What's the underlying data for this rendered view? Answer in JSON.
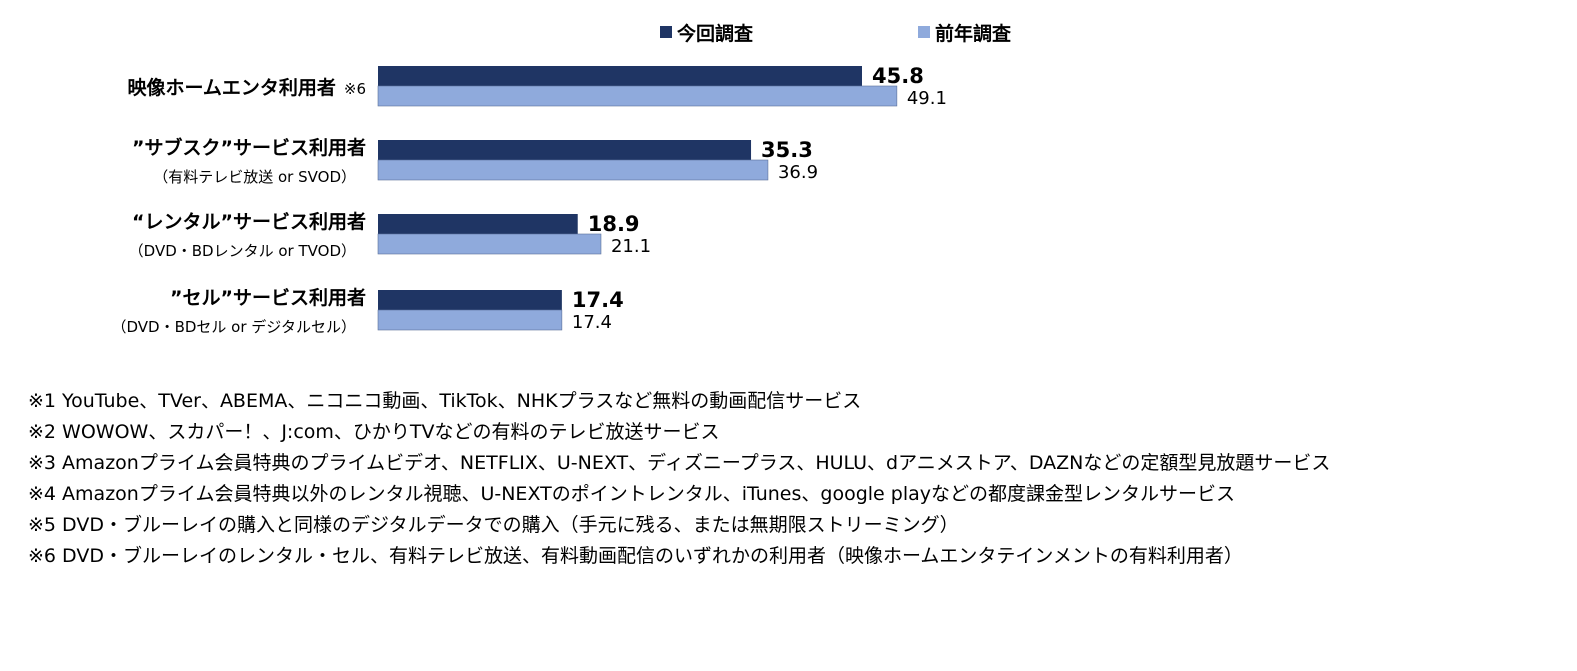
{
  "chart_data": {
    "type": "bar",
    "orientation": "horizontal",
    "legend": {
      "position": "top"
    },
    "series": [
      {
        "name": "今回調査",
        "color": "#1f3564",
        "values": [
          45.8,
          35.3,
          18.9,
          17.4
        ]
      },
      {
        "name": "前年調査",
        "color": "#8faadc",
        "values": [
          49.1,
          36.9,
          21.1,
          17.4
        ]
      }
    ],
    "categories": [
      {
        "label": "映像ホームエンタ利用者",
        "note": "※6",
        "sublabel": ""
      },
      {
        "label": "”サブスク”サービス利用者",
        "note": "",
        "sublabel": "（有料テレビ放送 or SVOD）"
      },
      {
        "label": "“レンタル”サービス利用者",
        "note": "",
        "sublabel": "（DVD・BDレンタル or TVOD）"
      },
      {
        "label": "”セル”サービス利用者",
        "note": "",
        "sublabel": "（DVD・BDセル or デジタルセル）"
      }
    ],
    "value_labels": [
      [
        "45.8",
        "35.3",
        "18.9",
        "17.4"
      ],
      [
        "49.1",
        "36.9",
        "21.1",
        "17.4"
      ]
    ],
    "xlim": [
      0,
      60
    ],
    "grid": false
  },
  "footnotes": [
    "※1 YouTube、TVer、ABEMA、ニコニコ動画、TikTok、NHKプラスなど無料の動画配信サービス",
    "※2 WOWOW、スカパー！、J:com、ひかりTVなどの有料のテレビ放送サービス",
    "※3 Amazonプライム会員特典のプライムビデオ、NETFLIX、U-NEXT、ディズニープラス、HULU、dアニメストア、DAZNなどの定額型見放題サービス",
    "※4 Amazonプライム会員特典以外のレンタル視聴、U-NEXTのポイントレンタル、iTunes、google playなどの都度課金型レンタルサービス",
    "※5 DVD・ブルーレイの購入と同様のデジタルデータでの購入（手元に残る、または無期限ストリーミング）",
    "※6 DVD・ブルーレイのレンタル・セル、有料テレビ放送、有料動画配信のいずれかの利用者（映像ホームエンタテインメントの有料利用者）"
  ]
}
